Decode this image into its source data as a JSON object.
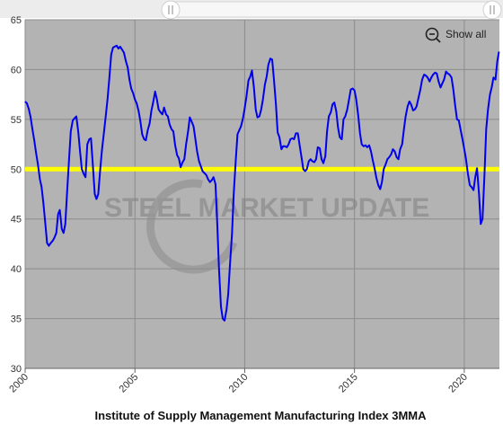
{
  "chart_data": {
    "type": "line",
    "title": "Institute of Supply Management Manufacturing Index 3MMA",
    "xlabel": "",
    "ylabel": "",
    "xlim": [
      2000,
      2021.6
    ],
    "ylim": [
      30,
      65
    ],
    "x_ticks": [
      "2000",
      "2005",
      "2010",
      "2015",
      "2020"
    ],
    "y_ticks": [
      "30",
      "35",
      "40",
      "45",
      "50",
      "55",
      "60",
      "65"
    ],
    "grid": true,
    "reference_line": {
      "value": 50,
      "color": "#ffff00"
    },
    "watermark": "STEEL MARKET UPDATE",
    "zoom_button_label": "Show all",
    "colors": {
      "series": "#0000ee",
      "plot_background": "#b3b3b3",
      "reference": "#ffff00",
      "grid": "#8c8c8c"
    },
    "series": [
      {
        "points": [
          [
            2000.0,
            56.8
          ],
          [
            2000.08,
            56.6
          ],
          [
            2000.17,
            56.0
          ],
          [
            2000.25,
            55.2
          ],
          [
            2000.33,
            54.0
          ],
          [
            2000.42,
            52.8
          ],
          [
            2000.5,
            51.6
          ],
          [
            2000.58,
            50.5
          ],
          [
            2000.67,
            49.0
          ],
          [
            2000.75,
            48.2
          ],
          [
            2000.83,
            46.6
          ],
          [
            2000.92,
            44.5
          ],
          [
            2001.0,
            42.6
          ],
          [
            2001.08,
            42.3
          ],
          [
            2001.17,
            42.6
          ],
          [
            2001.25,
            42.8
          ],
          [
            2001.33,
            43.1
          ],
          [
            2001.42,
            43.6
          ],
          [
            2001.5,
            45.5
          ],
          [
            2001.58,
            45.9
          ],
          [
            2001.67,
            44.0
          ],
          [
            2001.75,
            43.6
          ],
          [
            2001.83,
            44.5
          ],
          [
            2001.92,
            48.0
          ],
          [
            2002.0,
            51.0
          ],
          [
            2002.08,
            53.8
          ],
          [
            2002.17,
            54.9
          ],
          [
            2002.25,
            55.1
          ],
          [
            2002.33,
            55.3
          ],
          [
            2002.42,
            53.7
          ],
          [
            2002.5,
            51.8
          ],
          [
            2002.58,
            50.0
          ],
          [
            2002.67,
            49.5
          ],
          [
            2002.75,
            49.2
          ],
          [
            2002.83,
            52.5
          ],
          [
            2002.92,
            53.0
          ],
          [
            2003.0,
            53.1
          ],
          [
            2003.08,
            50.5
          ],
          [
            2003.17,
            47.5
          ],
          [
            2003.25,
            47.0
          ],
          [
            2003.33,
            47.5
          ],
          [
            2003.42,
            50.0
          ],
          [
            2003.5,
            52.0
          ],
          [
            2003.58,
            53.5
          ],
          [
            2003.67,
            55.3
          ],
          [
            2003.75,
            57.0
          ],
          [
            2003.83,
            59.0
          ],
          [
            2003.92,
            61.5
          ],
          [
            2004.0,
            62.2
          ],
          [
            2004.08,
            62.3
          ],
          [
            2004.17,
            62.4
          ],
          [
            2004.25,
            62.1
          ],
          [
            2004.33,
            62.3
          ],
          [
            2004.42,
            62.0
          ],
          [
            2004.5,
            61.7
          ],
          [
            2004.58,
            60.9
          ],
          [
            2004.67,
            60.2
          ],
          [
            2004.75,
            59.0
          ],
          [
            2004.83,
            58.1
          ],
          [
            2004.92,
            57.6
          ],
          [
            2005.0,
            57.0
          ],
          [
            2005.08,
            56.6
          ],
          [
            2005.17,
            55.8
          ],
          [
            2005.25,
            54.8
          ],
          [
            2005.33,
            53.5
          ],
          [
            2005.42,
            53.0
          ],
          [
            2005.5,
            52.9
          ],
          [
            2005.58,
            53.9
          ],
          [
            2005.67,
            54.6
          ],
          [
            2005.75,
            55.9
          ],
          [
            2005.83,
            56.7
          ],
          [
            2005.92,
            57.8
          ],
          [
            2006.0,
            57.0
          ],
          [
            2006.08,
            56.0
          ],
          [
            2006.17,
            55.7
          ],
          [
            2006.25,
            55.5
          ],
          [
            2006.33,
            56.2
          ],
          [
            2006.42,
            55.5
          ],
          [
            2006.5,
            55.3
          ],
          [
            2006.58,
            54.5
          ],
          [
            2006.67,
            54.0
          ],
          [
            2006.75,
            53.8
          ],
          [
            2006.83,
            52.4
          ],
          [
            2006.92,
            51.4
          ],
          [
            2007.0,
            51.1
          ],
          [
            2007.08,
            50.2
          ],
          [
            2007.17,
            50.7
          ],
          [
            2007.25,
            51.0
          ],
          [
            2007.33,
            52.5
          ],
          [
            2007.42,
            53.8
          ],
          [
            2007.5,
            55.2
          ],
          [
            2007.58,
            54.8
          ],
          [
            2007.67,
            54.3
          ],
          [
            2007.75,
            53.1
          ],
          [
            2007.83,
            51.8
          ],
          [
            2007.92,
            50.8
          ],
          [
            2008.0,
            50.3
          ],
          [
            2008.08,
            49.8
          ],
          [
            2008.17,
            49.6
          ],
          [
            2008.25,
            49.4
          ],
          [
            2008.33,
            49.0
          ],
          [
            2008.42,
            48.7
          ],
          [
            2008.5,
            48.9
          ],
          [
            2008.58,
            49.2
          ],
          [
            2008.67,
            48.5
          ],
          [
            2008.75,
            44.5
          ],
          [
            2008.83,
            40.0
          ],
          [
            2008.92,
            36.2
          ],
          [
            2009.0,
            35.0
          ],
          [
            2009.08,
            34.8
          ],
          [
            2009.17,
            35.9
          ],
          [
            2009.25,
            37.5
          ],
          [
            2009.33,
            40.5
          ],
          [
            2009.42,
            43.5
          ],
          [
            2009.5,
            47.5
          ],
          [
            2009.58,
            50.5
          ],
          [
            2009.67,
            53.5
          ],
          [
            2009.75,
            53.9
          ],
          [
            2009.83,
            54.3
          ],
          [
            2009.92,
            55.1
          ],
          [
            2010.0,
            56.1
          ],
          [
            2010.08,
            57.3
          ],
          [
            2010.17,
            58.9
          ],
          [
            2010.25,
            59.3
          ],
          [
            2010.33,
            59.9
          ],
          [
            2010.42,
            58.2
          ],
          [
            2010.5,
            56.0
          ],
          [
            2010.58,
            55.2
          ],
          [
            2010.67,
            55.3
          ],
          [
            2010.75,
            56.0
          ],
          [
            2010.83,
            57.0
          ],
          [
            2010.92,
            58.5
          ],
          [
            2011.0,
            59.3
          ],
          [
            2011.08,
            60.5
          ],
          [
            2011.17,
            61.1
          ],
          [
            2011.25,
            61.0
          ],
          [
            2011.33,
            59.0
          ],
          [
            2011.42,
            56.5
          ],
          [
            2011.5,
            53.7
          ],
          [
            2011.58,
            53.2
          ],
          [
            2011.67,
            52.0
          ],
          [
            2011.75,
            52.3
          ],
          [
            2011.83,
            52.3
          ],
          [
            2011.92,
            52.2
          ],
          [
            2012.0,
            52.5
          ],
          [
            2012.08,
            53.0
          ],
          [
            2012.17,
            53.1
          ],
          [
            2012.25,
            53.0
          ],
          [
            2012.33,
            53.6
          ],
          [
            2012.42,
            53.6
          ],
          [
            2012.5,
            52.4
          ],
          [
            2012.58,
            51.3
          ],
          [
            2012.67,
            50.0
          ],
          [
            2012.75,
            49.8
          ],
          [
            2012.83,
            50.0
          ],
          [
            2012.92,
            50.8
          ],
          [
            2013.0,
            51.0
          ],
          [
            2013.08,
            50.8
          ],
          [
            2013.17,
            50.7
          ],
          [
            2013.25,
            51.0
          ],
          [
            2013.33,
            52.2
          ],
          [
            2013.42,
            52.1
          ],
          [
            2013.5,
            51.0
          ],
          [
            2013.58,
            50.6
          ],
          [
            2013.67,
            51.3
          ],
          [
            2013.75,
            53.8
          ],
          [
            2013.83,
            55.3
          ],
          [
            2013.92,
            55.7
          ],
          [
            2014.0,
            56.5
          ],
          [
            2014.08,
            56.7
          ],
          [
            2014.17,
            55.8
          ],
          [
            2014.25,
            54.2
          ],
          [
            2014.33,
            53.2
          ],
          [
            2014.42,
            53.0
          ],
          [
            2014.5,
            55.0
          ],
          [
            2014.58,
            55.3
          ],
          [
            2014.67,
            56.0
          ],
          [
            2014.75,
            57.0
          ],
          [
            2014.83,
            58.0
          ],
          [
            2014.92,
            58.1
          ],
          [
            2015.0,
            57.9
          ],
          [
            2015.08,
            57.0
          ],
          [
            2015.17,
            55.4
          ],
          [
            2015.25,
            53.6
          ],
          [
            2015.33,
            52.5
          ],
          [
            2015.42,
            52.3
          ],
          [
            2015.5,
            52.4
          ],
          [
            2015.58,
            52.2
          ],
          [
            2015.67,
            52.4
          ],
          [
            2015.75,
            51.8
          ],
          [
            2015.83,
            50.9
          ],
          [
            2015.92,
            50.0
          ],
          [
            2016.0,
            49.1
          ],
          [
            2016.08,
            48.4
          ],
          [
            2016.17,
            48.0
          ],
          [
            2016.25,
            48.7
          ],
          [
            2016.33,
            50.0
          ],
          [
            2016.42,
            50.5
          ],
          [
            2016.5,
            51.0
          ],
          [
            2016.58,
            51.2
          ],
          [
            2016.67,
            51.5
          ],
          [
            2016.75,
            52.0
          ],
          [
            2016.83,
            51.8
          ],
          [
            2016.92,
            51.2
          ],
          [
            2017.0,
            51.0
          ],
          [
            2017.08,
            52.0
          ],
          [
            2017.17,
            52.5
          ],
          [
            2017.25,
            54.0
          ],
          [
            2017.33,
            55.3
          ],
          [
            2017.42,
            56.3
          ],
          [
            2017.5,
            56.8
          ],
          [
            2017.58,
            56.5
          ],
          [
            2017.67,
            55.9
          ],
          [
            2017.75,
            56.0
          ],
          [
            2017.83,
            56.3
          ],
          [
            2017.92,
            57.2
          ],
          [
            2018.0,
            58.0
          ],
          [
            2018.08,
            59.0
          ],
          [
            2018.17,
            59.5
          ],
          [
            2018.25,
            59.4
          ],
          [
            2018.33,
            59.2
          ],
          [
            2018.42,
            58.8
          ],
          [
            2018.5,
            59.2
          ],
          [
            2018.58,
            59.5
          ],
          [
            2018.67,
            59.7
          ],
          [
            2018.75,
            59.6
          ],
          [
            2018.83,
            58.8
          ],
          [
            2018.92,
            58.2
          ],
          [
            2019.0,
            58.6
          ],
          [
            2019.08,
            59.0
          ],
          [
            2019.17,
            59.8
          ],
          [
            2019.25,
            59.6
          ],
          [
            2019.33,
            59.5
          ],
          [
            2019.42,
            59.2
          ],
          [
            2019.5,
            58.0
          ],
          [
            2019.58,
            56.5
          ],
          [
            2019.67,
            55.0
          ],
          [
            2019.75,
            54.9
          ],
          [
            2019.83,
            54.0
          ],
          [
            2019.92,
            53.0
          ],
          [
            2020.0,
            52.0
          ],
          [
            2020.08,
            51.0
          ],
          [
            2020.17,
            49.5
          ],
          [
            2020.25,
            48.4
          ],
          [
            2020.33,
            48.2
          ],
          [
            2020.42,
            47.9
          ],
          [
            2020.5,
            49.2
          ],
          [
            2020.58,
            50.1
          ],
          [
            2020.67,
            47.5
          ],
          [
            2020.75,
            44.5
          ],
          [
            2020.83,
            45.0
          ],
          [
            2020.92,
            49.5
          ],
          [
            2021.0,
            54.0
          ],
          [
            2021.08,
            56.0
          ],
          [
            2021.17,
            57.5
          ],
          [
            2021.25,
            58.2
          ],
          [
            2021.33,
            59.2
          ],
          [
            2021.42,
            59.0
          ],
          [
            2021.5,
            60.8
          ],
          [
            2021.58,
            61.8
          ],
          [
            2021.67,
            62.2
          ],
          [
            2021.75,
            62.0
          ],
          [
            2021.83,
            60.8
          ],
          [
            2021.92,
            60.3
          ],
          [
            2022.0,
            60.0
          ]
        ]
      }
    ]
  }
}
